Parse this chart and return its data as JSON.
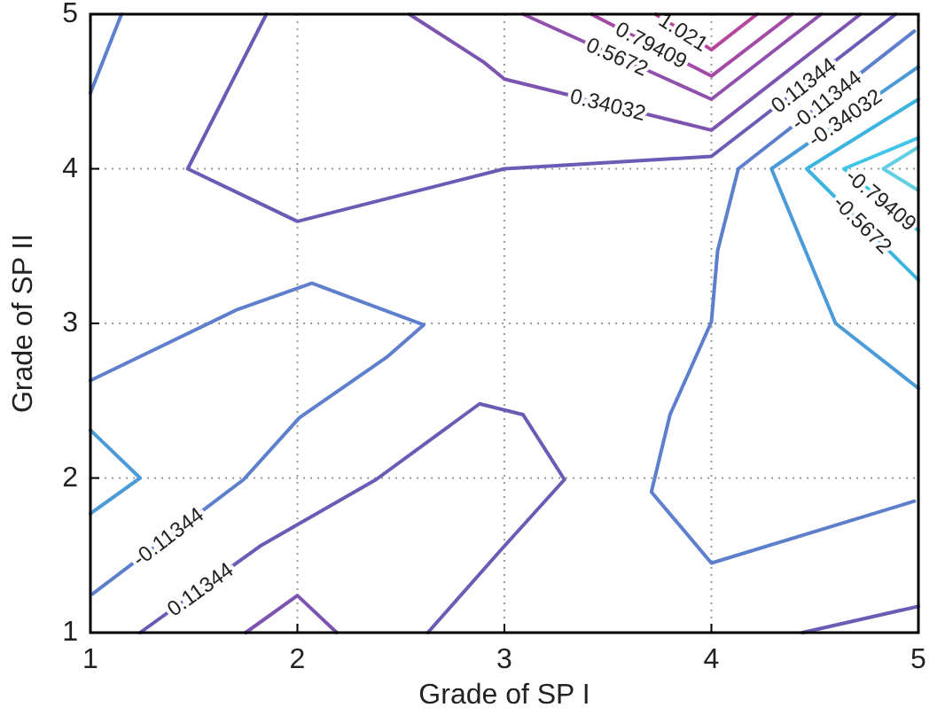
{
  "chart_data": {
    "type": "line",
    "xlabel": "Grade of SP I",
    "ylabel": "Grade of SP II",
    "xlim": [
      1,
      5
    ],
    "ylim": [
      1,
      5
    ],
    "xticks": [
      1,
      2,
      3,
      4,
      5
    ],
    "yticks": [
      1,
      2,
      3,
      4,
      5
    ],
    "grid": true,
    "line_style": "solid",
    "series": [
      {
        "name": "1.021",
        "color": "#b5479c",
        "x": [
          3.73,
          4,
          4.22
        ],
        "values": [
          5,
          4.77,
          5
        ]
      },
      {
        "name": "0.79409",
        "color": "#a24aa6",
        "x": [
          3.42,
          4,
          4.39
        ],
        "values": [
          5,
          4.6,
          5
        ]
      },
      {
        "name": "0.5672",
        "color": "#9250ad",
        "x": [
          3.09,
          4,
          4.53
        ],
        "values": [
          5,
          4.45,
          5
        ]
      },
      {
        "name": "0.34032",
        "color": "#7d55b0",
        "x": [
          2.54,
          2.9,
          3,
          4,
          4.72
        ],
        "values": [
          5,
          4.69,
          4.58,
          4.25,
          5
        ]
      },
      {
        "name": "0.11344",
        "color": "#6a5bb5",
        "x": [
          1.85,
          1.47,
          2,
          3,
          4,
          4.89
        ],
        "values": [
          5,
          4,
          3.66,
          4,
          4.08,
          5
        ]
      },
      {
        "name": "0.11344",
        "color": "#6a5bb5",
        "x": [
          1.24,
          1.82,
          2.38,
          2.88,
          3.09,
          3.29,
          2.98,
          2.63
        ],
        "values": [
          1,
          1.56,
          1.99,
          2.48,
          2.41,
          1.99,
          1.53,
          1
        ]
      },
      {
        "color": "#6a5bb5",
        "x": [
          4.44,
          5
        ],
        "values": [
          1,
          1.17
        ]
      },
      {
        "color": "#7d55b0",
        "x": [
          1.75,
          2,
          2.19
        ],
        "values": [
          1,
          1.24,
          1
        ]
      },
      {
        "color": "#5d7fcc",
        "x": [
          1,
          1.15
        ],
        "values": [
          4.49,
          5
        ]
      },
      {
        "name": "-0.11344",
        "color": "#5d7fcc",
        "x": [
          1,
          1.71,
          2.07,
          2.61,
          2.43,
          2.01,
          1.74,
          1.01
        ],
        "values": [
          2.63,
          3.09,
          3.26,
          2.99,
          2.78,
          2.39,
          1.99,
          1.25
        ]
      },
      {
        "name": "-0.11344",
        "color": "#5d7fcc",
        "x": [
          4.98,
          4.13,
          4.03,
          4,
          3.8,
          3.71,
          4,
          4.98
        ],
        "values": [
          4.89,
          4,
          3.47,
          3.01,
          2.41,
          1.91,
          1.45,
          1.85
        ]
      },
      {
        "name": "-0.34032",
        "color": "#4a9bd8",
        "x": [
          5,
          4.29,
          4.6,
          5
        ],
        "values": [
          4.66,
          4,
          3,
          2.58
        ]
      },
      {
        "color": "#4a9bd8",
        "x": [
          1,
          1.24,
          1
        ],
        "values": [
          2.31,
          2,
          1.77
        ]
      },
      {
        "name": "-0.5672",
        "color": "#3cb4e0",
        "x": [
          5,
          4.46,
          5
        ],
        "values": [
          4.45,
          4,
          3.28
        ]
      },
      {
        "name": "-0.79409",
        "color": "#3fc6e8",
        "x": [
          5,
          4.64,
          5
        ],
        "values": [
          4.2,
          4,
          3.6
        ]
      },
      {
        "color": "#62d0e0",
        "x": [
          5,
          4.83,
          5
        ],
        "values": [
          4.14,
          4,
          3.86
        ]
      }
    ]
  }
}
